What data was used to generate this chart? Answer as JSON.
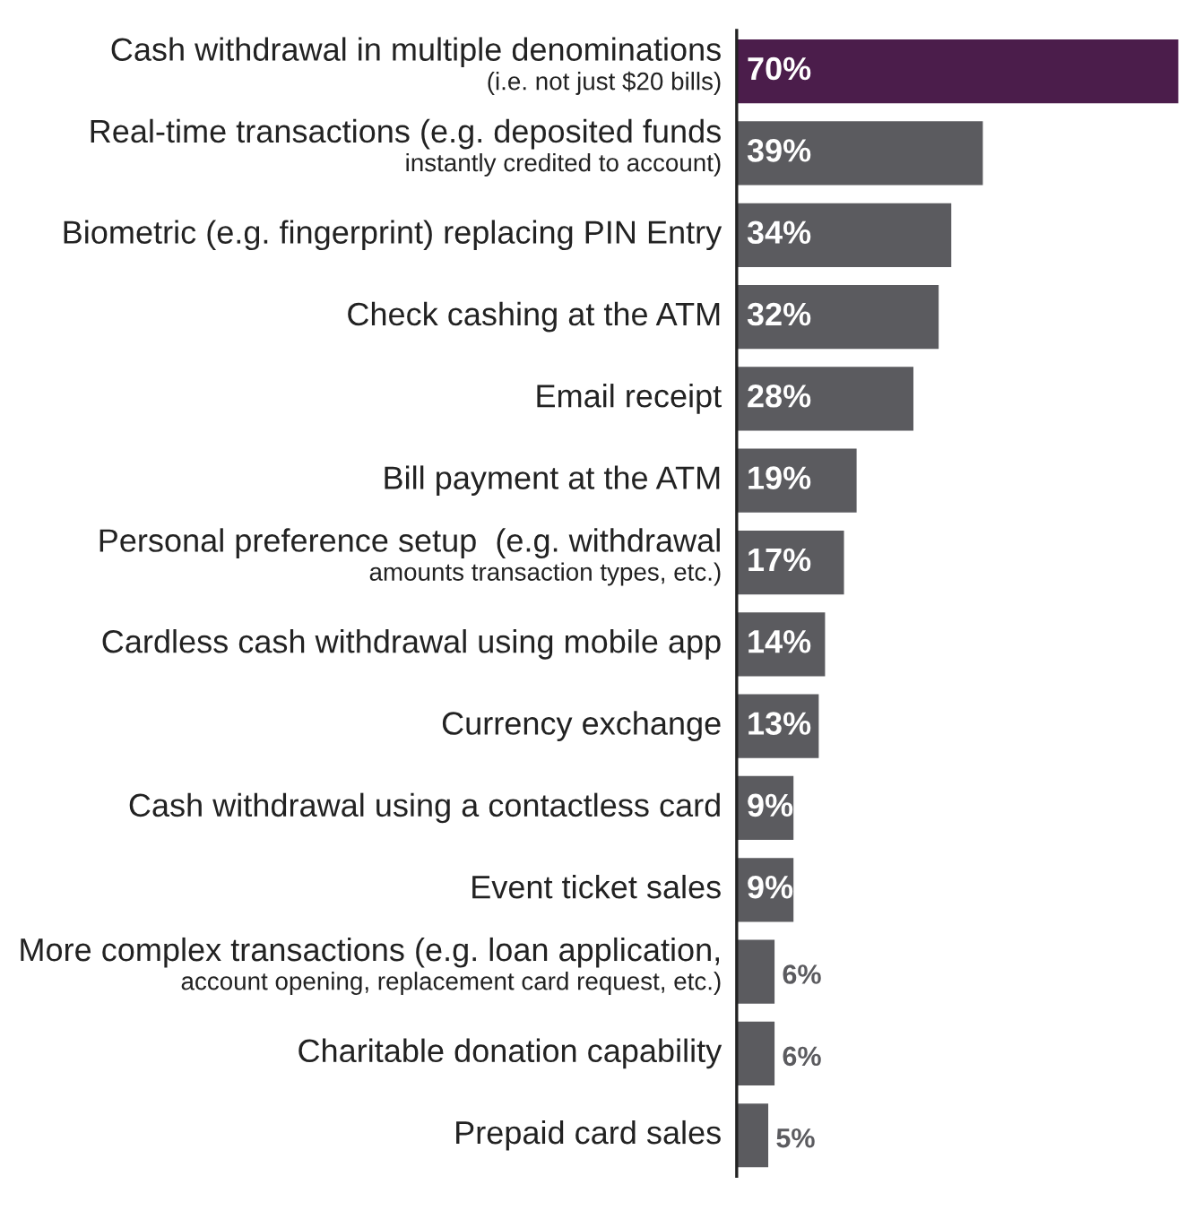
{
  "chart_data": {
    "type": "bar",
    "orientation": "horizontal",
    "categories": [
      "Cash withdrawal in multiple denominations\n(i.e. not just $20 bills)",
      "Real-time transactions (e.g. deposited funds\ninstantly credited to account)",
      "Biometric (e.g. fingerprint) replacing PIN Entry",
      "Check cashing at the ATM",
      "Email receipt",
      "Bill payment at the ATM",
      "Personal preference setup  (e.g. withdrawal\namounts transaction types, etc.)",
      "Cardless cash withdrawal using mobile app",
      "Currency exchange",
      "Cash withdrawal using a contactless card",
      "Event ticket sales",
      "More complex transactions (e.g. loan application,\naccount opening, replacement card request, etc.)",
      "Charitable donation capability",
      "Prepaid card sales"
    ],
    "values": [
      70,
      39,
      34,
      32,
      28,
      19,
      17,
      14,
      13,
      9,
      9,
      6,
      6,
      5
    ],
    "value_labels": [
      "70%",
      "39%",
      "34%",
      "32%",
      "28%",
      "19%",
      "17%",
      "14%",
      "13%",
      "9%",
      "9%",
      "6%",
      "6%",
      "5%"
    ],
    "colors": [
      "#4b1d4b",
      "#5b5b5f",
      "#5b5b5f",
      "#5b5b5f",
      "#5b5b5f",
      "#5b5b5f",
      "#5b5b5f",
      "#5b5b5f",
      "#5b5b5f",
      "#5b5b5f",
      "#5b5b5f",
      "#5b5b5f",
      "#5b5b5f",
      "#5b5b5f"
    ]
  }
}
